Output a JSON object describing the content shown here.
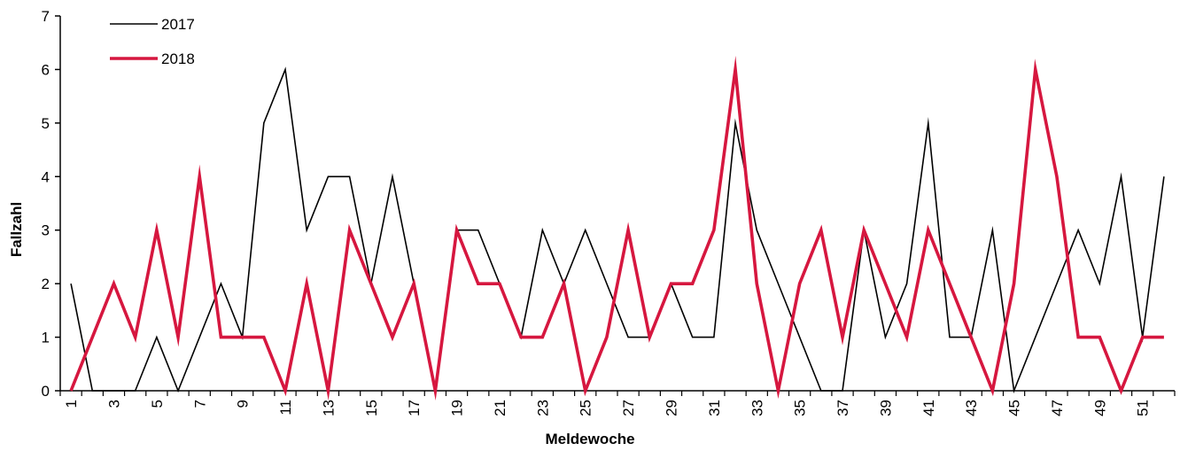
{
  "chart_data": {
    "type": "line",
    "title": "",
    "xlabel": "Meldewoche",
    "ylabel": "Fallzahl",
    "x": [
      1,
      2,
      3,
      4,
      5,
      6,
      7,
      8,
      9,
      10,
      11,
      12,
      13,
      14,
      15,
      16,
      17,
      18,
      19,
      20,
      21,
      22,
      23,
      24,
      25,
      26,
      27,
      28,
      29,
      30,
      31,
      32,
      33,
      34,
      35,
      36,
      37,
      38,
      39,
      40,
      41,
      42,
      43,
      44,
      45,
      46,
      47,
      48,
      49,
      50,
      51,
      52
    ],
    "x_tick_labels": [
      "1",
      "3",
      "5",
      "7",
      "9",
      "11",
      "13",
      "15",
      "17",
      "19",
      "21",
      "23",
      "25",
      "27",
      "29",
      "31",
      "33",
      "35",
      "37",
      "39",
      "41",
      "43",
      "45",
      "47",
      "49",
      "51"
    ],
    "ylim": [
      0,
      7
    ],
    "y_ticks": [
      "0",
      "1",
      "2",
      "3",
      "4",
      "5",
      "6",
      "7"
    ],
    "legend_position": "top-left",
    "grid": false,
    "series": [
      {
        "name": "2017",
        "color": "#000000",
        "values": [
          2,
          0,
          0,
          0,
          1,
          0,
          1,
          2,
          1,
          5,
          6,
          3,
          4,
          4,
          2,
          4,
          2,
          0,
          3,
          3,
          2,
          1,
          3,
          2,
          3,
          2,
          1,
          1,
          2,
          1,
          1,
          5,
          3,
          2,
          1,
          0,
          0,
          3,
          1,
          2,
          5,
          1,
          1,
          3,
          0,
          1,
          2,
          3,
          2,
          4,
          1,
          4
        ]
      },
      {
        "name": "2018",
        "color": "#d6173f",
        "values": [
          0,
          1,
          2,
          1,
          3,
          1,
          4,
          1,
          1,
          1,
          0,
          2,
          0,
          3,
          2,
          1,
          2,
          0,
          3,
          2,
          2,
          1,
          1,
          2,
          0,
          1,
          3,
          1,
          2,
          2,
          3,
          6,
          2,
          0,
          2,
          3,
          1,
          3,
          2,
          1,
          3,
          2,
          1,
          0,
          2,
          6,
          4,
          1,
          1,
          0,
          1,
          1
        ]
      }
    ]
  }
}
